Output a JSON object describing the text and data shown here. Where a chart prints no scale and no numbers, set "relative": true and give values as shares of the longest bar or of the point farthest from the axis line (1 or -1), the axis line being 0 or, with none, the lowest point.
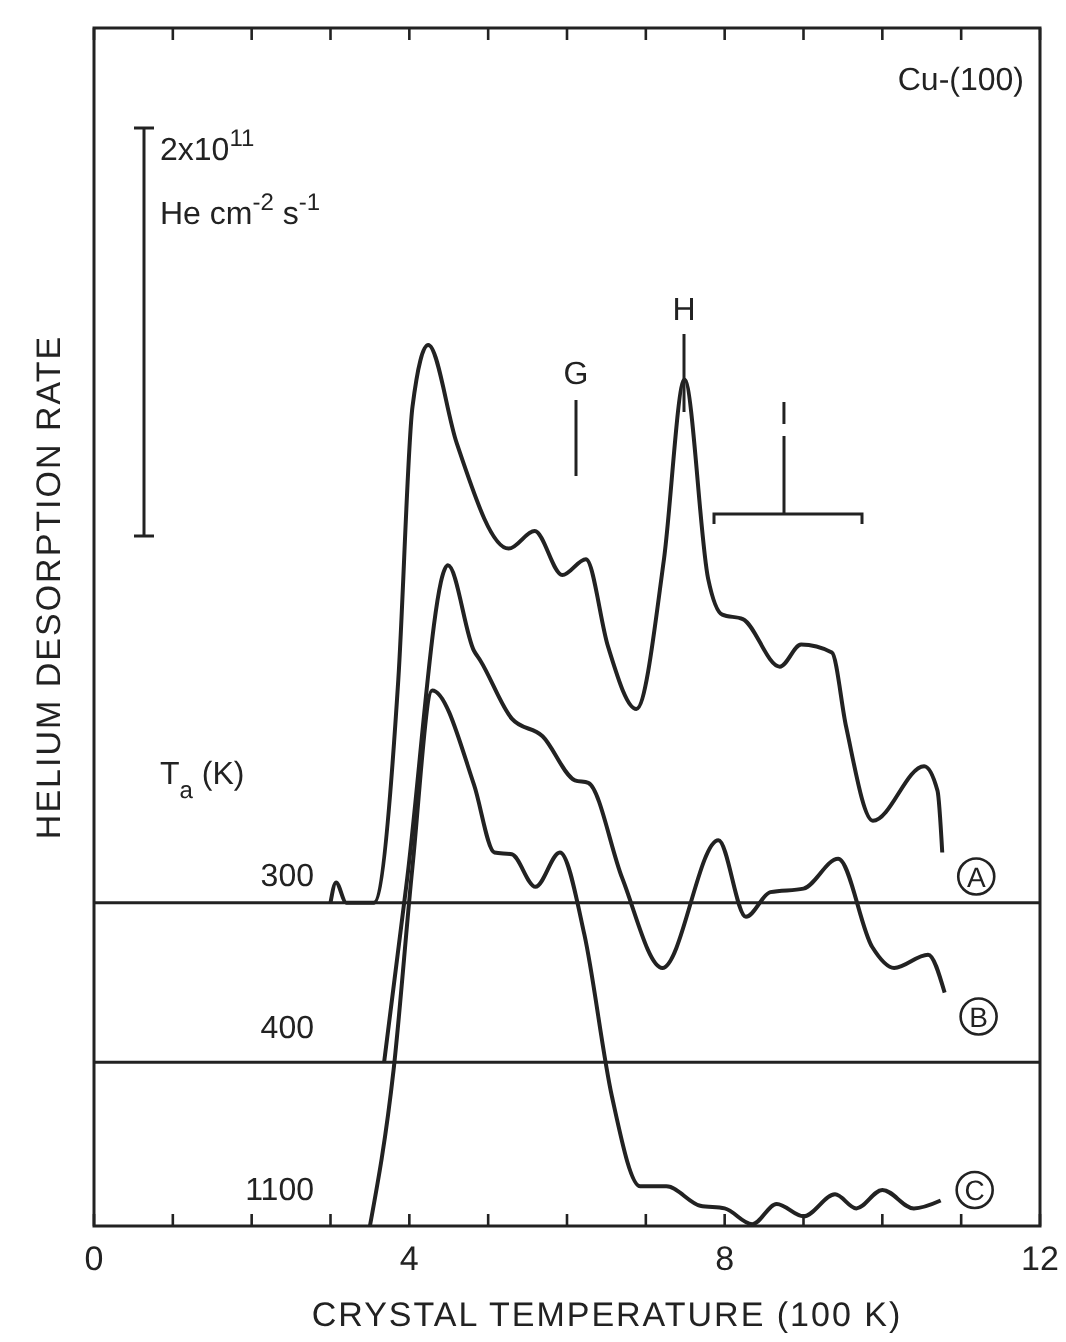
{
  "chart_data": {
    "type": "line",
    "relative": true,
    "xlabel": "CRYSTAL TEMPERATURE (100 K)",
    "ylabel": "HELIUM DESORPTION RATE",
    "xlim": [
      0,
      12
    ],
    "xticks": [
      0,
      {
        "value": 1,
        "label": null
      },
      {
        "value": 2,
        "label": null
      },
      {
        "value": 3,
        "label": null
      },
      4,
      {
        "value": 5,
        "label": null
      },
      {
        "value": 6,
        "label": null
      },
      {
        "value": 7,
        "label": null
      },
      8,
      {
        "value": 9,
        "label": null
      },
      {
        "value": 10,
        "label": null
      },
      {
        "value": 11,
        "label": null
      },
      12
    ],
    "grid": false,
    "marker": "none",
    "line_style": "solid",
    "series": [
      {
        "name": "A",
        "color": "#222222",
        "x": [
          3.0,
          3.07,
          3.2,
          3.55,
          3.86,
          4.04,
          4.24,
          4.6,
          5.26,
          5.59,
          5.94,
          6.24,
          6.52,
          6.88,
          7.23,
          7.49,
          7.79,
          7.97,
          8.23,
          8.7,
          8.97,
          9.36,
          9.54,
          9.88,
          10.53,
          10.7,
          10.76
        ],
        "values": [
          0.367,
          0.39,
          0.367,
          0.367,
          0.62,
          0.93,
          1.0,
          0.889,
          0.769,
          0.789,
          0.739,
          0.757,
          0.658,
          0.587,
          0.757,
          0.961,
          0.735,
          0.694,
          0.689,
          0.635,
          0.66,
          0.651,
          0.567,
          0.46,
          0.522,
          0.494,
          0.424
        ]
      },
      {
        "name": "B",
        "color": "#222222",
        "x": [
          3.68,
          3.96,
          4.49,
          4.82,
          4.9,
          5.3,
          5.69,
          6.1,
          6.27,
          6.7,
          7.21,
          7.92,
          8.27,
          8.58,
          9.0,
          9.44,
          9.87,
          10.15,
          10.58,
          10.79
        ],
        "values": [
          0.186,
          0.385,
          0.75,
          0.653,
          0.642,
          0.576,
          0.556,
          0.506,
          0.503,
          0.395,
          0.293,
          0.438,
          0.351,
          0.379,
          0.383,
          0.417,
          0.317,
          0.293,
          0.308,
          0.265
        ]
      },
      {
        "name": "C",
        "color": "#222222",
        "x": [
          3.5,
          3.8,
          4.04,
          4.29,
          4.82,
          5.08,
          5.3,
          5.6,
          5.91,
          6.22,
          6.57,
          6.93,
          7.26,
          7.69,
          8.0,
          8.35,
          8.66,
          9.0,
          9.4,
          9.67,
          10.0,
          10.4,
          10.74
        ],
        "values": [
          0,
          0.177,
          0.408,
          0.608,
          0.501,
          0.424,
          0.422,
          0.385,
          0.424,
          0.331,
          0.147,
          0.045,
          0.045,
          0.023,
          0.02,
          0.002,
          0.025,
          0.011,
          0.036,
          0.02,
          0.041,
          0.02,
          0.029
        ]
      }
    ],
    "ref_lines": [
      {
        "axis": "y",
        "value": 0.367,
        "color": "#222222"
      },
      {
        "axis": "y",
        "value": 0.186,
        "color": "#222222"
      }
    ],
    "annotations": [
      "Cu-(100)",
      "2x10$^{11}$ He cm$^{-2}$ s$^{-1}$",
      "T$_{a}$ (K)",
      "300",
      "400",
      "1100",
      "G",
      "H",
      "I"
    ]
  }
}
